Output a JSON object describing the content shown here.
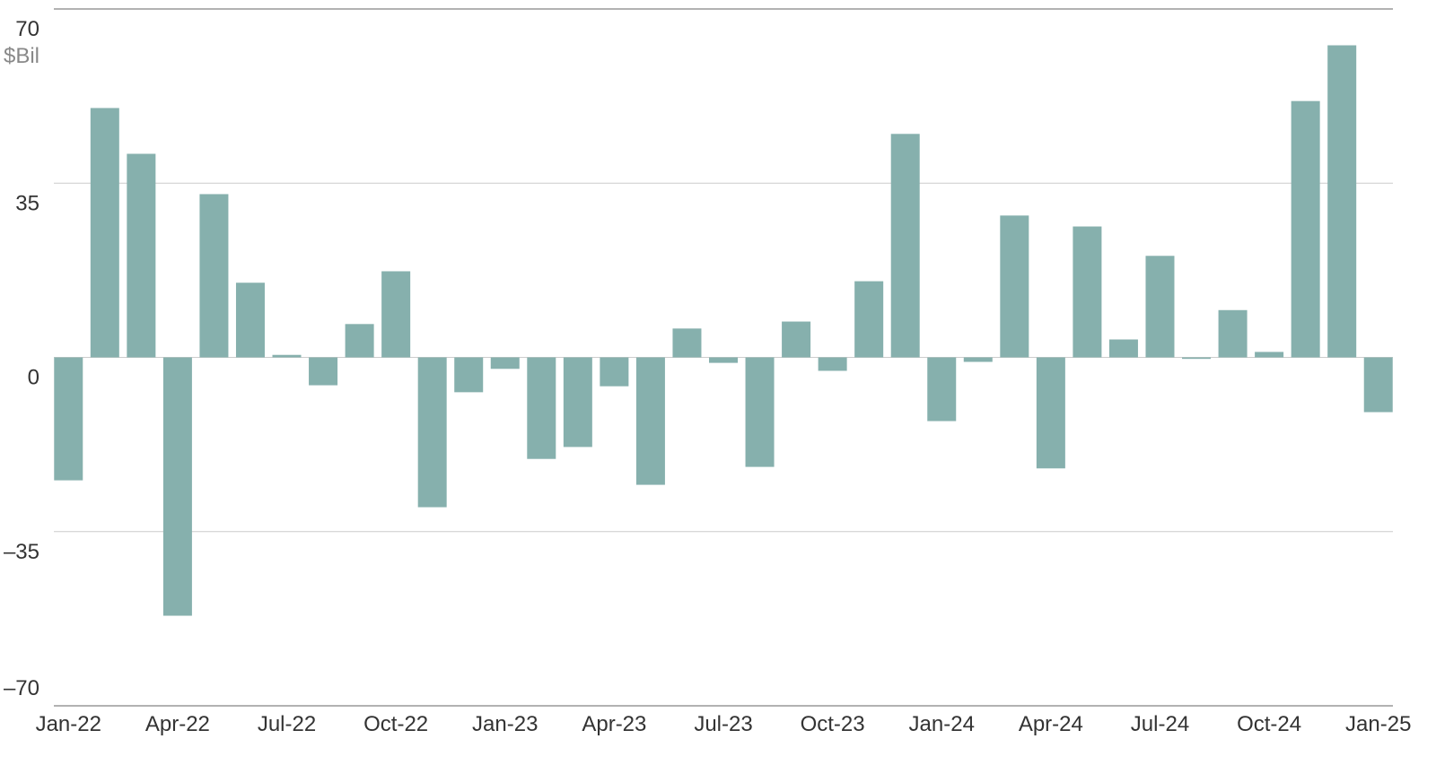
{
  "chart_data": {
    "type": "bar",
    "y_unit": "$Bil",
    "categories": [
      "Jan-22",
      null,
      null,
      "Apr-22",
      null,
      null,
      "Jul-22",
      null,
      null,
      "Oct-22",
      null,
      null,
      "Jan-23",
      null,
      null,
      "Apr-23",
      null,
      null,
      "Jul-23",
      null,
      null,
      "Oct-23",
      null,
      null,
      "Jan-24",
      null,
      null,
      "Apr-24",
      null,
      null,
      "Jul-24",
      null,
      null,
      "Oct-24",
      null,
      null,
      "Jan-25"
    ],
    "values": [
      -24.7,
      50.1,
      40.9,
      -51.9,
      32.8,
      15.0,
      0.5,
      -5.6,
      6.7,
      17.3,
      -30.1,
      -7.0,
      -2.3,
      -20.4,
      -18.0,
      -5.8,
      -25.6,
      5.8,
      -1.1,
      -22.0,
      7.2,
      -2.7,
      15.3,
      44.9,
      -12.8,
      -0.9,
      28.5,
      -22.3,
      26.3,
      3.6,
      20.4,
      -0.3,
      9.5,
      1.1,
      51.5,
      62.7,
      -11.0
    ],
    "color": "#86b0ad",
    "ylim": [
      -70,
      70
    ],
    "yticks": [
      {
        "value": -70,
        "label": "–70"
      },
      {
        "value": -35,
        "label": "–35"
      },
      0,
      35,
      70
    ],
    "grid": true
  }
}
